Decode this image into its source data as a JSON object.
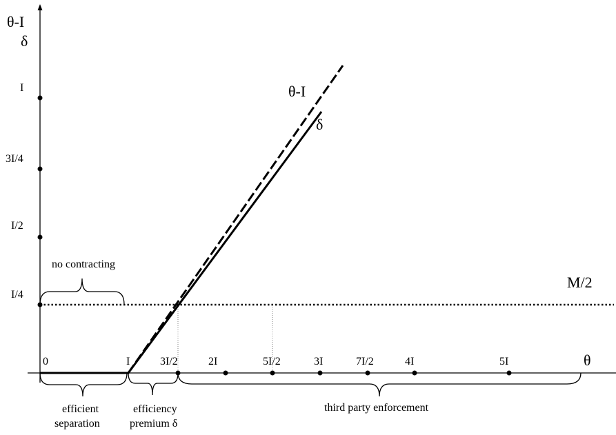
{
  "diagram": {
    "y_axis_label_top": "θ-I",
    "y_axis_label_bottom": "δ",
    "x_axis_label": "θ",
    "y_ticks": [
      "I",
      "3I/4",
      "I/2",
      "I/4"
    ],
    "x_ticks": [
      "0",
      "I",
      "3I/2",
      "2I",
      "5I/2",
      "3I",
      "7I/2",
      "4I",
      "5I"
    ],
    "curve_labels": {
      "theta_minus_i": "θ-I",
      "delta": "δ",
      "m_half": "M/2"
    },
    "regions": {
      "no_contracting": "no contracting",
      "efficient_separation_line1": "efficient",
      "efficient_separation_line2": "separation",
      "efficiency_premium_line1": "efficiency",
      "efficiency_premium_line2": "premium δ",
      "third_party": "third party enforcement"
    }
  }
}
